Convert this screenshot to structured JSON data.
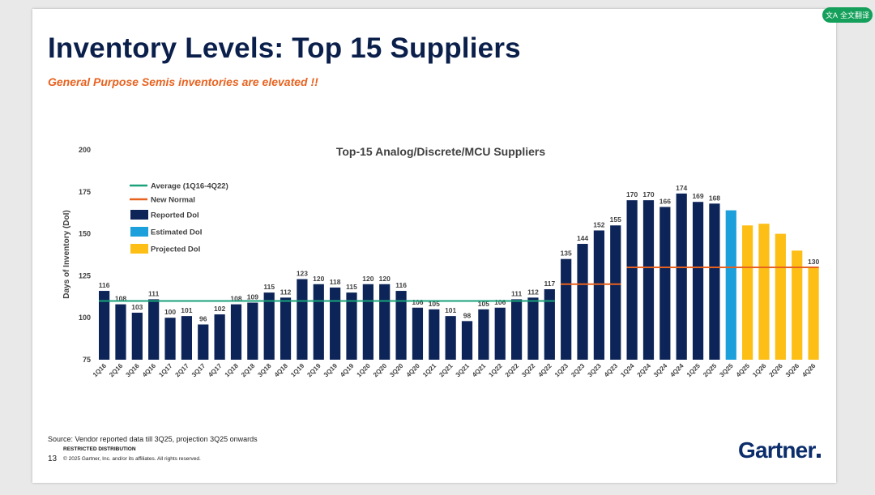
{
  "title": "Inventory Levels: Top 15 Suppliers",
  "subtitle": "General Purpose Semis inventories are elevated !!",
  "translate_button": "全文翻译",
  "source": "Source: Vendor reported data till 3Q25, projection 3Q25 onwards",
  "restricted": "RESTRICTED DISTRIBUTION",
  "page_number": "13",
  "copyright": "© 2025 Gartner, Inc. and/or its affiliates. All rights reserved.",
  "logo": "Gartner",
  "colors": {
    "reported": "#0c2457",
    "estimated": "#1ba0dc",
    "projected": "#fdbf15",
    "average": "#1ba27a",
    "new_normal": "#e8621f",
    "title": "#0b1f4b"
  },
  "chart_data": {
    "type": "bar",
    "title": "Top-15 Analog/Discrete/MCU Suppliers",
    "ylabel": "Days of Inventory (DoI)",
    "xlabel": "",
    "ylim": [
      75,
      200
    ],
    "yticks": [
      75,
      100,
      125,
      150,
      175,
      200
    ],
    "categories": [
      "1Q16",
      "2Q16",
      "3Q16",
      "4Q16",
      "1Q17",
      "2Q17",
      "3Q17",
      "4Q17",
      "1Q18",
      "2Q18",
      "3Q18",
      "4Q18",
      "1Q19",
      "2Q19",
      "3Q19",
      "4Q19",
      "1Q20",
      "2Q20",
      "3Q20",
      "4Q20",
      "1Q21",
      "2Q21",
      "3Q21",
      "4Q21",
      "1Q22",
      "2Q22",
      "3Q22",
      "4Q22",
      "1Q23",
      "2Q23",
      "3Q23",
      "4Q23",
      "1Q24",
      "2Q24",
      "3Q24",
      "4Q24",
      "1Q25",
      "2Q25",
      "3Q25",
      "4Q25",
      "1Q26",
      "2Q26",
      "3Q26",
      "4Q26"
    ],
    "values": [
      116,
      108,
      103,
      111,
      100,
      101,
      96,
      102,
      108,
      109,
      115,
      112,
      123,
      120,
      118,
      115,
      120,
      120,
      116,
      106,
      105,
      101,
      98,
      105,
      106,
      111,
      112,
      117,
      135,
      144,
      152,
      155,
      170,
      170,
      166,
      174,
      169,
      168,
      164,
      155,
      156,
      150,
      140,
      130
    ],
    "labels": [
      "116",
      "108",
      "103",
      "111",
      "100",
      "101",
      "96",
      "102",
      "108",
      "109",
      "115",
      "112",
      "123",
      "120",
      "118",
      "115",
      "120",
      "120",
      "116",
      "106",
      "105",
      "101",
      "98",
      "105",
      "106",
      "111",
      "112",
      "117",
      "135",
      "144",
      "152",
      "155",
      "170",
      "170",
      "166",
      "174",
      "169",
      "168",
      "",
      "",
      "",
      "",
      "",
      "130"
    ],
    "kinds": [
      "reported",
      "reported",
      "reported",
      "reported",
      "reported",
      "reported",
      "reported",
      "reported",
      "reported",
      "reported",
      "reported",
      "reported",
      "reported",
      "reported",
      "reported",
      "reported",
      "reported",
      "reported",
      "reported",
      "reported",
      "reported",
      "reported",
      "reported",
      "reported",
      "reported",
      "reported",
      "reported",
      "reported",
      "reported",
      "reported",
      "reported",
      "reported",
      "reported",
      "reported",
      "reported",
      "reported",
      "reported",
      "reported",
      "estimated",
      "projected",
      "projected",
      "projected",
      "projected",
      "projected"
    ],
    "average": {
      "label": "Average (1Q16-4Q22)",
      "value": 110,
      "from": "1Q16",
      "to": "4Q22"
    },
    "new_normal": [
      {
        "value": 120,
        "from": "1Q23",
        "to": "4Q23"
      },
      {
        "value": 130,
        "from": "1Q24",
        "to": "4Q26"
      }
    ],
    "legend": [
      {
        "label": "Average (1Q16-4Q22)",
        "kind": "average",
        "shape": "line"
      },
      {
        "label": "New Normal",
        "kind": "new_normal",
        "shape": "line"
      },
      {
        "label": "Reported DoI",
        "kind": "reported",
        "shape": "box"
      },
      {
        "label": "Estimated DoI",
        "kind": "estimated",
        "shape": "box"
      },
      {
        "label": "Projected DoI",
        "kind": "projected",
        "shape": "box"
      }
    ],
    "legend_position": "top-left",
    "grid": false
  }
}
